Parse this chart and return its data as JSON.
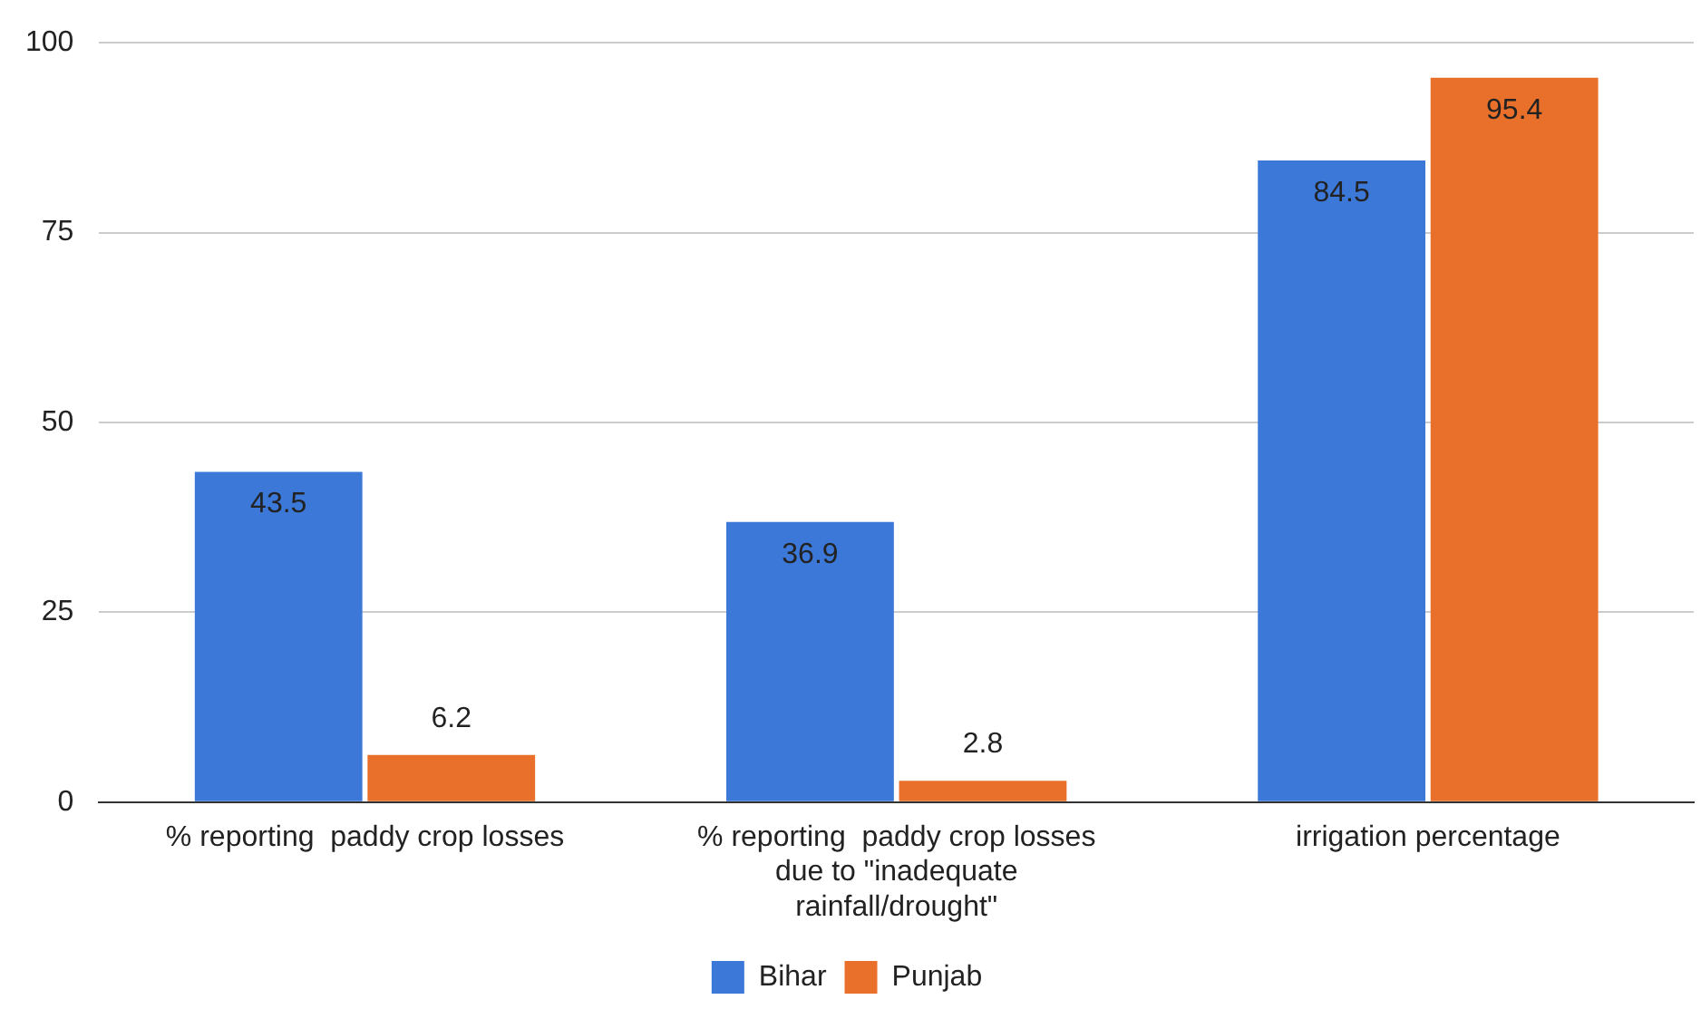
{
  "chart_data": {
    "type": "bar",
    "categories": [
      "% reporting  paddy crop losses",
      "% reporting  paddy crop losses due to \"inadequate rainfall/drought\"",
      "irrigation percentage"
    ],
    "series": [
      {
        "name": "Bihar",
        "color": "#3c78d8",
        "values": [
          43.5,
          36.9,
          84.5
        ]
      },
      {
        "name": "Punjab",
        "color": "#e8702a",
        "values": [
          6.2,
          2.8,
          95.4
        ]
      }
    ],
    "ylim": [
      0,
      100
    ],
    "yticks": [
      0,
      25,
      50,
      75,
      100
    ],
    "grid": "y",
    "legend": "bottom",
    "data_labels": true
  }
}
